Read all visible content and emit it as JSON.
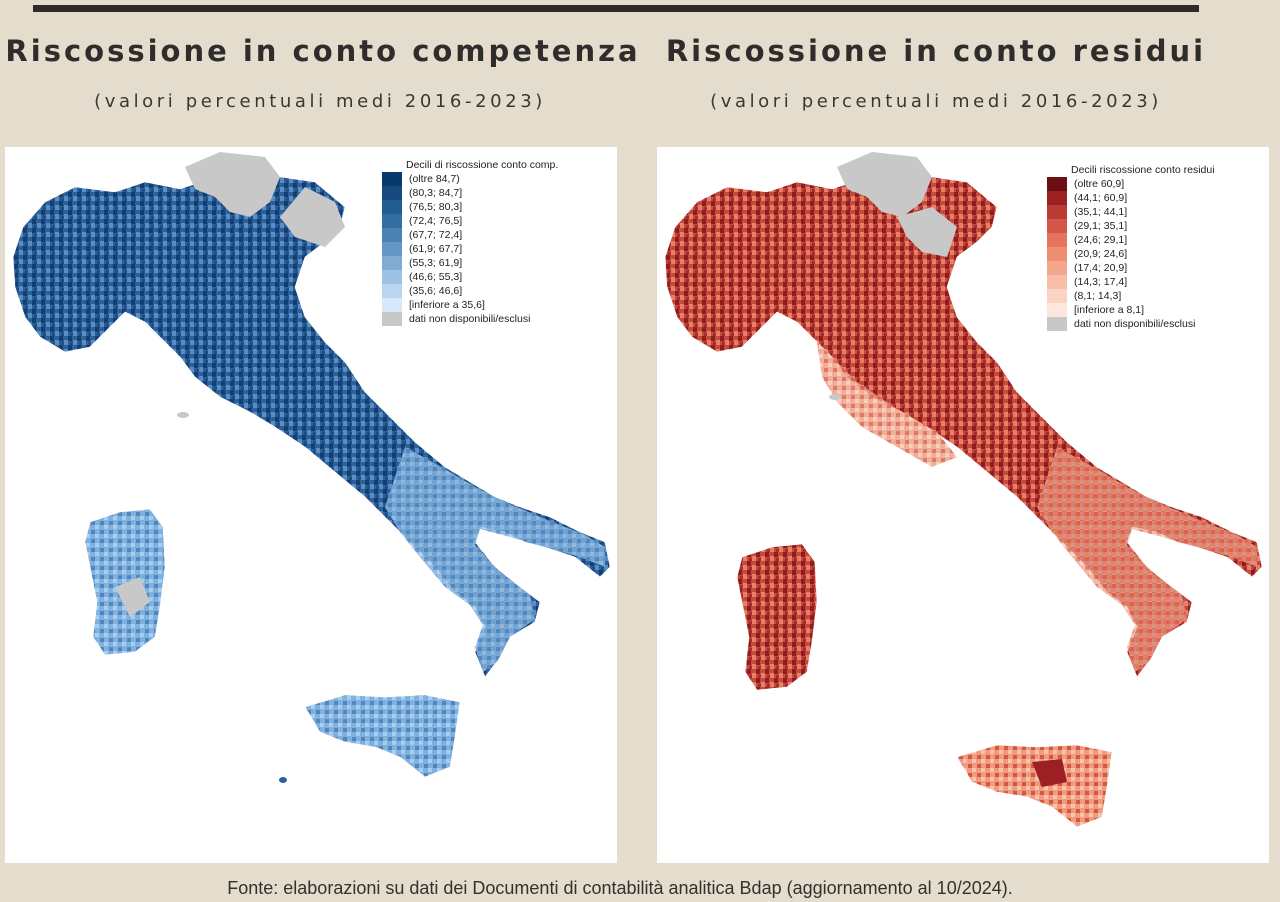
{
  "left": {
    "title": "Riscossione in conto competenza",
    "subtitle": "(valori percentuali medi 2016-2023)",
    "legend_title": "Decili di riscossione conto comp.",
    "legend": [
      {
        "label": "(oltre 84,7)",
        "color": "#08396c"
      },
      {
        "label": "(80,3; 84,7]",
        "color": "#174a80"
      },
      {
        "label": "(76,5; 80,3]",
        "color": "#235c93"
      },
      {
        "label": "(72,4; 76,5]",
        "color": "#336ea3"
      },
      {
        "label": "(67,7; 72,4]",
        "color": "#4a82b3"
      },
      {
        "label": "(61,9; 67,7]",
        "color": "#6497c3"
      },
      {
        "label": "(55,3; 61,9]",
        "color": "#80acd4"
      },
      {
        "label": "(46,6; 55,3]",
        "color": "#9ec2e3"
      },
      {
        "label": "(35,6; 46,6]",
        "color": "#bad5ef"
      },
      {
        "label": "[inferiore a 35,6]",
        "color": "#d6e8fa"
      },
      {
        "label": "dati non disponibili/esclusi",
        "color": "#c8c8c8"
      }
    ]
  },
  "right": {
    "title": "Riscossione in conto residui",
    "subtitle": "(valori percentuali medi 2016-2023)",
    "legend_title": "Decili riscossione conto residui",
    "legend": [
      {
        "label": "(oltre 60,9]",
        "color": "#6b0f14"
      },
      {
        "label": "(44,1; 60,9]",
        "color": "#9b2024"
      },
      {
        "label": "(35,1; 44,1]",
        "color": "#bc3a33"
      },
      {
        "label": "(29,1; 35,1]",
        "color": "#d45646"
      },
      {
        "label": "(24,6; 29,1]",
        "color": "#e6735c"
      },
      {
        "label": "(20,9; 24,6]",
        "color": "#f08e72"
      },
      {
        "label": "(17,4; 20,9]",
        "color": "#f5a78e"
      },
      {
        "label": "(14,3; 17,4]",
        "color": "#f9bea9"
      },
      {
        "label": "(8,1; 14,3]",
        "color": "#fbd3c3"
      },
      {
        "label": "[inferiore a 8,1]",
        "color": "#fde6dc"
      },
      {
        "label": "dati non disponibili/esclusi",
        "color": "#c8c8c8"
      }
    ]
  },
  "footer": "Fonte: elaborazioni su dati dei Documenti di contabilità analitica Bdap (aggiornamento al 10/2024)."
}
